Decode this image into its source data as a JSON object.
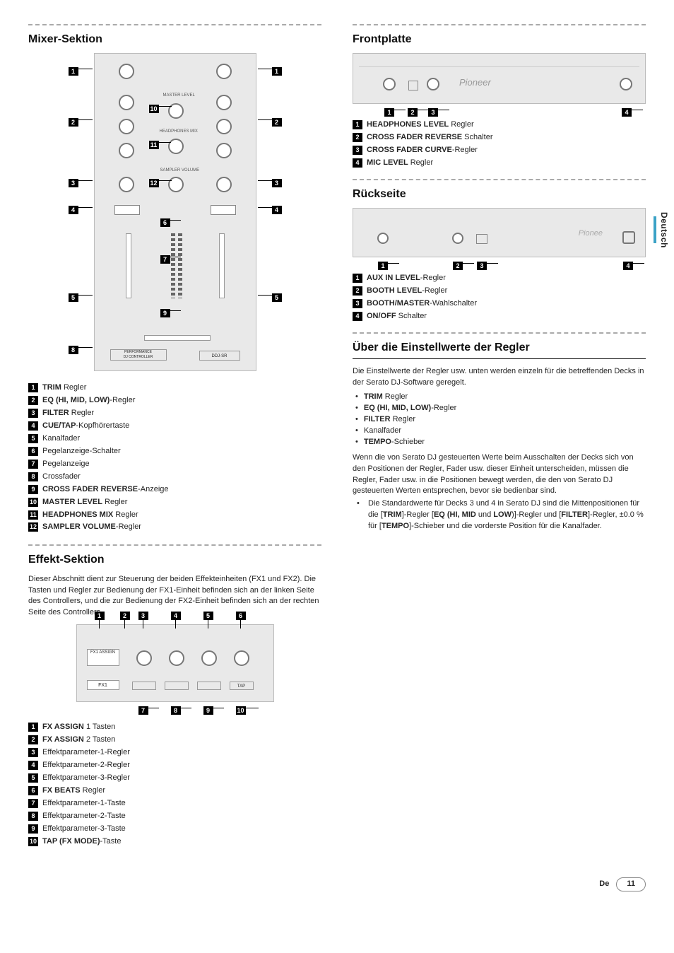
{
  "page": {
    "lang_code": "De",
    "page_number": "11",
    "side_tab": "Deutsch"
  },
  "mixer": {
    "title": "Mixer-Sektion",
    "legend": [
      {
        "n": "1",
        "label_bold": "TRIM",
        "label_rest": " Regler"
      },
      {
        "n": "2",
        "label_bold": "EQ (HI, MID, LOW)",
        "label_rest": "-Regler"
      },
      {
        "n": "3",
        "label_bold": "FILTER",
        "label_rest": " Regler"
      },
      {
        "n": "4",
        "label_bold": "CUE/TAP",
        "label_rest": "-Kopfhörertaste"
      },
      {
        "n": "5",
        "label_bold": "",
        "label_rest": "Kanalfader"
      },
      {
        "n": "6",
        "label_bold": "",
        "label_rest": "Pegelanzeige-Schalter"
      },
      {
        "n": "7",
        "label_bold": "",
        "label_rest": "Pegelanzeige"
      },
      {
        "n": "8",
        "label_bold": "",
        "label_rest": "Crossfader"
      },
      {
        "n": "9",
        "label_bold": "CROSS FADER REVERSE",
        "label_rest": "-Anzeige"
      },
      {
        "n": "10",
        "label_bold": "MASTER LEVEL",
        "label_rest": " Regler"
      },
      {
        "n": "11",
        "label_bold": "HEADPHONES MIX",
        "label_rest": " Regler"
      },
      {
        "n": "12",
        "label_bold": "SAMPLER VOLUME",
        "label_rest": "-Regler"
      }
    ]
  },
  "effect": {
    "title": "Effekt-Sektion",
    "intro": "Dieser Abschnitt dient zur Steuerung der beiden Effekteinheiten (FX1 und FX2). Die Tasten und Regler zur Bedienung der FX1-Einheit befinden sich an der linken Seite des Controllers, und die zur Bedienung der FX2-Einheit befinden sich an der rechten Seite des Controllers.",
    "legend": [
      {
        "n": "1",
        "label_bold": "FX ASSIGN",
        "label_rest": " 1 Tasten"
      },
      {
        "n": "2",
        "label_bold": "FX ASSIGN",
        "label_rest": " 2 Tasten"
      },
      {
        "n": "3",
        "label_bold": "",
        "label_rest": "Effektparameter-1-Regler"
      },
      {
        "n": "4",
        "label_bold": "",
        "label_rest": "Effektparameter-2-Regler"
      },
      {
        "n": "5",
        "label_bold": "",
        "label_rest": "Effektparameter-3-Regler"
      },
      {
        "n": "6",
        "label_bold": "FX BEATS",
        "label_rest": " Regler"
      },
      {
        "n": "7",
        "label_bold": "",
        "label_rest": "Effektparameter-1-Taste"
      },
      {
        "n": "8",
        "label_bold": "",
        "label_rest": "Effektparameter-2-Taste"
      },
      {
        "n": "9",
        "label_bold": "",
        "label_rest": "Effektparameter-3-Taste"
      },
      {
        "n": "10",
        "label_bold": "TAP (FX MODE)",
        "label_rest": "-Taste"
      }
    ]
  },
  "front": {
    "title": "Frontplatte",
    "brand": "Pioneer",
    "legend": [
      {
        "n": "1",
        "label_bold": "HEADPHONES LEVEL",
        "label_rest": " Regler"
      },
      {
        "n": "2",
        "label_bold": "CROSS FADER REVERSE",
        "label_rest": " Schalter"
      },
      {
        "n": "3",
        "label_bold": "CROSS FADER CURVE",
        "label_rest": "-Regler"
      },
      {
        "n": "4",
        "label_bold": "MIC LEVEL",
        "label_rest": " Regler"
      }
    ]
  },
  "rear": {
    "title": "Rückseite",
    "brand": "Pionee",
    "legend": [
      {
        "n": "1",
        "label_bold": "AUX IN LEVEL",
        "label_rest": "-Regler"
      },
      {
        "n": "2",
        "label_bold": "BOOTH LEVEL",
        "label_rest": "-Regler"
      },
      {
        "n": "3",
        "label_bold": "BOOTH/MASTER",
        "label_rest": "-Wahlschalter"
      },
      {
        "n": "4",
        "label_bold": "ON/OFF",
        "label_rest": " Schalter"
      }
    ]
  },
  "settings": {
    "title": "Über die Einstellwerte der Regler",
    "para1": "Die Einstellwerte der Regler usw. unten werden einzeln für die betreffenden Decks in der Serato DJ-Software geregelt.",
    "bullets": [
      {
        "b": "TRIM",
        "rest": " Regler"
      },
      {
        "b": "EQ (HI, MID, LOW)",
        "rest": "-Regler"
      },
      {
        "b": "FILTER",
        "rest": " Regler"
      },
      {
        "b": "",
        "rest": "Kanalfader"
      },
      {
        "b": "TEMPO",
        "rest": "-Schieber"
      }
    ],
    "para2": "Wenn die von Serato DJ gesteuerten Werte beim Ausschalten der Decks sich von den Positionen der Regler, Fader usw. dieser Einheit unterscheiden, müssen die Regler, Fader usw. in die Positionen bewegt werden, die den von Serato DJ gesteuerten Werten entsprechen, bevor sie bedienbar sind.",
    "note_prefix": "Die Standardwerte für Decks 3 und 4 in Serato DJ sind die Mittenpositionen für die [",
    "note_trim": "TRIM",
    "note_mid1": "]-Regler [",
    "note_eq": "EQ (HI, MID",
    "note_mid2": " und ",
    "note_low": "LOW",
    "note_mid3": ")]-Regler und [",
    "note_filter": "FILTER",
    "note_mid4": "]-Regler, ±0.0 % für [",
    "note_tempo": "TEMPO",
    "note_suffix": "]-Schieber und die vorderste Position für die Kanalfader."
  }
}
